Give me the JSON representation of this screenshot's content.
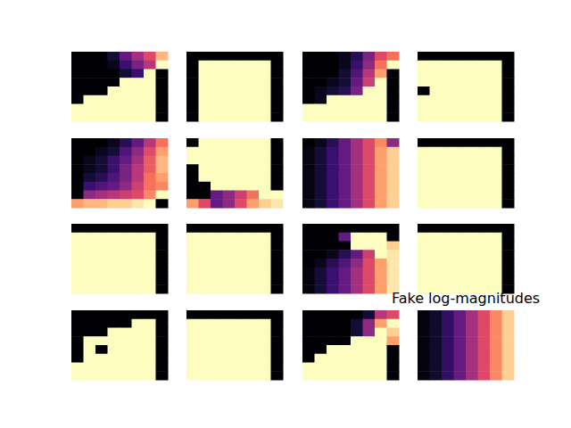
{
  "chart_data": [
    {
      "type": "heatmap",
      "tick_labels": false,
      "color_range": [
        0,
        1
      ],
      "cells": [
        [
          0,
          0,
          0,
          0.1,
          0.3,
          0.45,
          0.6,
          0.85
        ],
        [
          0,
          0,
          0,
          0.05,
          0.2,
          0.35,
          0.5,
          1
        ],
        [
          0,
          0,
          0,
          0,
          0.1,
          0.2,
          1,
          0
        ],
        [
          0,
          0,
          0,
          0,
          1,
          1,
          1,
          0
        ],
        [
          0,
          0,
          0,
          1,
          1,
          1,
          1,
          0
        ],
        [
          0,
          1,
          1,
          1,
          1,
          1,
          1,
          0
        ],
        [
          1,
          1,
          1,
          1,
          1,
          1,
          1,
          0
        ],
        [
          1,
          1,
          1,
          1,
          1,
          1,
          1,
          0
        ]
      ]
    },
    {
      "type": "heatmap",
      "tick_labels": false,
      "color_range": [
        0,
        1
      ],
      "cells": [
        [
          0,
          0,
          0,
          0,
          0,
          0,
          0,
          0
        ],
        [
          0,
          1,
          1,
          1,
          1,
          1,
          1,
          0
        ],
        [
          0,
          1,
          1,
          1,
          1,
          1,
          1,
          0
        ],
        [
          0,
          1,
          1,
          1,
          1,
          1,
          1,
          0
        ],
        [
          0,
          1,
          1,
          1,
          1,
          1,
          1,
          0
        ],
        [
          0,
          1,
          1,
          1,
          1,
          1,
          1,
          0
        ],
        [
          0,
          1,
          1,
          1,
          1,
          1,
          1,
          0
        ],
        [
          0,
          1,
          1,
          1,
          1,
          1,
          1,
          0
        ]
      ]
    },
    {
      "type": "heatmap",
      "tick_labels": false,
      "color_range": [
        0,
        1
      ],
      "cells": [
        [
          0,
          0,
          0,
          0.05,
          0.15,
          0.35,
          0.6,
          0.7
        ],
        [
          0,
          0,
          0,
          0.05,
          0.2,
          0.4,
          0.7,
          1
        ],
        [
          0,
          0,
          0,
          0.1,
          0.25,
          0.5,
          0.8,
          0
        ],
        [
          0,
          0,
          0.05,
          0.1,
          0.3,
          0.55,
          1,
          0
        ],
        [
          0,
          0.05,
          0.1,
          0.15,
          0.35,
          1,
          1,
          0
        ],
        [
          0,
          0.05,
          1,
          1,
          1,
          1,
          1,
          0
        ],
        [
          1,
          1,
          1,
          1,
          1,
          1,
          1,
          0
        ],
        [
          1,
          1,
          1,
          1,
          1,
          1,
          1,
          0
        ]
      ]
    },
    {
      "type": "heatmap",
      "tick_labels": false,
      "color_range": [
        0,
        1
      ],
      "cells": [
        [
          0,
          0,
          0,
          0,
          0,
          0,
          0,
          0
        ],
        [
          1,
          1,
          1,
          1,
          1,
          1,
          1,
          0
        ],
        [
          1,
          1,
          1,
          1,
          1,
          1,
          1,
          0
        ],
        [
          1,
          1,
          1,
          1,
          1,
          1,
          1,
          0
        ],
        [
          0,
          1,
          1,
          1,
          1,
          1,
          1,
          0
        ],
        [
          1,
          1,
          1,
          1,
          1,
          1,
          1,
          0
        ],
        [
          1,
          1,
          1,
          1,
          1,
          1,
          1,
          0
        ],
        [
          1,
          1,
          1,
          1,
          1,
          1,
          1,
          0
        ]
      ]
    },
    {
      "type": "heatmap",
      "tick_labels": false,
      "color_range": [
        0,
        1
      ],
      "cells": [
        [
          0,
          0,
          0,
          0.05,
          0.15,
          0.3,
          0.5,
          0.7
        ],
        [
          0,
          0,
          0.05,
          0.1,
          0.25,
          0.4,
          0.6,
          0.8
        ],
        [
          0,
          0.05,
          0.1,
          0.2,
          0.3,
          0.45,
          0.65,
          0.85
        ],
        [
          0,
          0.05,
          0.1,
          0.2,
          0.35,
          0.5,
          0.65,
          0.85
        ],
        [
          0,
          0.1,
          0.15,
          0.25,
          0.35,
          0.5,
          0.7,
          0.8
        ],
        [
          0,
          0.2,
          0.25,
          0.3,
          0.4,
          0.55,
          0.7,
          0.75
        ],
        [
          0,
          0.4,
          0.45,
          0.5,
          0.55,
          0.6,
          0.75,
          1
        ],
        [
          0.8,
          0.85,
          0.85,
          0.9,
          0.9,
          0.95,
          1,
          0
        ]
      ]
    },
    {
      "type": "heatmap",
      "tick_labels": false,
      "color_range": [
        0,
        1
      ],
      "cells": [
        [
          0,
          1,
          1,
          1,
          1,
          1,
          1,
          0
        ],
        [
          1,
          1,
          1,
          1,
          1,
          1,
          1,
          0
        ],
        [
          1,
          1,
          1,
          1,
          1,
          1,
          1,
          0
        ],
        [
          0,
          1,
          1,
          1,
          1,
          1,
          1,
          0
        ],
        [
          0,
          1,
          1,
          1,
          1,
          1,
          1,
          0
        ],
        [
          0,
          0,
          1,
          1,
          1,
          1,
          1,
          0
        ],
        [
          0,
          0,
          0.3,
          0.4,
          0.55,
          0.7,
          1,
          1
        ],
        [
          0.8,
          0.6,
          0.3,
          0.4,
          0.6,
          0.8,
          0.9,
          0.95
        ]
      ]
    },
    {
      "type": "heatmap",
      "tick_labels": false,
      "color_range": [
        0,
        1
      ],
      "cells": [
        [
          0,
          0.05,
          0.15,
          0.3,
          0.45,
          0.6,
          0.75,
          0.4
        ],
        [
          0.03,
          0.1,
          0.2,
          0.3,
          0.45,
          0.6,
          0.8,
          0.9
        ],
        [
          0.03,
          0.1,
          0.2,
          0.3,
          0.45,
          0.6,
          0.8,
          0.9
        ],
        [
          0.03,
          0.1,
          0.2,
          0.3,
          0.45,
          0.6,
          0.8,
          0.9
        ],
        [
          0.03,
          0.1,
          0.2,
          0.3,
          0.45,
          0.6,
          0.8,
          0.9
        ],
        [
          0.03,
          0.1,
          0.2,
          0.3,
          0.45,
          0.6,
          0.8,
          0.9
        ],
        [
          0.03,
          0.1,
          0.2,
          0.3,
          0.45,
          0.6,
          0.8,
          0.9
        ],
        [
          0.03,
          0.1,
          0.2,
          0.3,
          0.45,
          0.6,
          0.8,
          0.9
        ]
      ]
    },
    {
      "type": "heatmap",
      "tick_labels": false,
      "color_range": [
        0,
        1
      ],
      "cells": [
        [
          0,
          0,
          0,
          0,
          0,
          0,
          0,
          0
        ],
        [
          1,
          1,
          1,
          1,
          1,
          1,
          1,
          0
        ],
        [
          1,
          1,
          1,
          1,
          1,
          1,
          1,
          0
        ],
        [
          1,
          1,
          1,
          1,
          1,
          1,
          1,
          0
        ],
        [
          1,
          1,
          1,
          1,
          1,
          1,
          1,
          0
        ],
        [
          1,
          1,
          1,
          1,
          1,
          1,
          1,
          0
        ],
        [
          1,
          1,
          1,
          1,
          1,
          1,
          1,
          0
        ],
        [
          1,
          1,
          1,
          1,
          1,
          1,
          1,
          0
        ]
      ]
    },
    {
      "type": "heatmap",
      "tick_labels": false,
      "color_range": [
        0,
        1
      ],
      "cells": [
        [
          0,
          0,
          0,
          0,
          0,
          0,
          0,
          0
        ],
        [
          1,
          1,
          1,
          1,
          1,
          1,
          1,
          0
        ],
        [
          1,
          1,
          1,
          1,
          1,
          1,
          1,
          0
        ],
        [
          1,
          1,
          1,
          1,
          1,
          1,
          1,
          0
        ],
        [
          1,
          1,
          1,
          1,
          1,
          1,
          1,
          0
        ],
        [
          1,
          1,
          1,
          1,
          1,
          1,
          1,
          0
        ],
        [
          1,
          1,
          1,
          1,
          1,
          1,
          1,
          0
        ],
        [
          1,
          1,
          1,
          1,
          1,
          1,
          1,
          0
        ]
      ]
    },
    {
      "type": "heatmap",
      "tick_labels": false,
      "color_range": [
        0,
        1
      ],
      "cells": [
        [
          0,
          0,
          0,
          0,
          0,
          0,
          0,
          0
        ],
        [
          1,
          1,
          1,
          1,
          1,
          1,
          1,
          0
        ],
        [
          1,
          1,
          1,
          1,
          1,
          1,
          1,
          0
        ],
        [
          1,
          1,
          1,
          1,
          1,
          1,
          1,
          0
        ],
        [
          1,
          1,
          1,
          1,
          1,
          1,
          1,
          0
        ],
        [
          1,
          1,
          1,
          1,
          1,
          1,
          1,
          0
        ],
        [
          1,
          1,
          1,
          1,
          1,
          1,
          1,
          0
        ],
        [
          1,
          1,
          1,
          1,
          1,
          1,
          1,
          0
        ]
      ]
    },
    {
      "type": "heatmap",
      "tick_labels": false,
      "color_range": [
        0,
        1
      ],
      "cells": [
        [
          0,
          0,
          0,
          0,
          0,
          0,
          0,
          0
        ],
        [
          0,
          0,
          0,
          0.3,
          1,
          1,
          1,
          0
        ],
        [
          0,
          0,
          0,
          0,
          1,
          1,
          1,
          0.9
        ],
        [
          0,
          0,
          0.05,
          0.15,
          0.3,
          0.55,
          1,
          0.95
        ],
        [
          0,
          0.05,
          0.15,
          0.25,
          0.4,
          0.6,
          0.8,
          0.95
        ],
        [
          0.02,
          0.1,
          0.2,
          0.3,
          0.45,
          0.6,
          0.8,
          0.95
        ],
        [
          0.02,
          0.1,
          0.2,
          0.3,
          0.45,
          0.6,
          0.8,
          0.95
        ],
        [
          0.02,
          0.1,
          0.2,
          0.3,
          0.45,
          0.6,
          0.8,
          0.95
        ]
      ]
    },
    {
      "type": "heatmap",
      "tick_labels": false,
      "color_range": [
        0,
        1
      ],
      "cells": [
        [
          0,
          0,
          0,
          0,
          0,
          0,
          0,
          0
        ],
        [
          1,
          1,
          1,
          1,
          1,
          1,
          1,
          0
        ],
        [
          1,
          1,
          1,
          1,
          1,
          1,
          1,
          0
        ],
        [
          1,
          1,
          1,
          1,
          1,
          1,
          1,
          0
        ],
        [
          1,
          1,
          1,
          1,
          1,
          1,
          1,
          0
        ],
        [
          1,
          1,
          1,
          1,
          1,
          1,
          1,
          0
        ],
        [
          1,
          1,
          1,
          1,
          1,
          1,
          1,
          0
        ],
        [
          1,
          1,
          1,
          1,
          1,
          1,
          1,
          0
        ]
      ]
    },
    {
      "type": "heatmap",
      "tick_labels": false,
      "color_range": [
        0,
        1
      ],
      "cells": [
        [
          0,
          0,
          0,
          0,
          0,
          0,
          0,
          0
        ],
        [
          0,
          0,
          0,
          0,
          0,
          1,
          1,
          0
        ],
        [
          0,
          0,
          0,
          1,
          1,
          1,
          1,
          0
        ],
        [
          0,
          1,
          1,
          1,
          1,
          1,
          1,
          0
        ],
        [
          0,
          1,
          0,
          1,
          1,
          1,
          1,
          0
        ],
        [
          0,
          1,
          1,
          1,
          1,
          1,
          1,
          0
        ],
        [
          1,
          1,
          1,
          1,
          1,
          1,
          1,
          0
        ],
        [
          1,
          1,
          1,
          1,
          1,
          1,
          1,
          0
        ]
      ]
    },
    {
      "type": "heatmap",
      "tick_labels": false,
      "color_range": [
        0,
        1
      ],
      "cells": [
        [
          0,
          0,
          0,
          0,
          0,
          0,
          0,
          0
        ],
        [
          1,
          1,
          1,
          1,
          1,
          1,
          1,
          0
        ],
        [
          1,
          1,
          1,
          1,
          1,
          1,
          1,
          0
        ],
        [
          1,
          1,
          1,
          1,
          1,
          1,
          1,
          0
        ],
        [
          1,
          1,
          1,
          1,
          1,
          1,
          1,
          0
        ],
        [
          1,
          1,
          1,
          1,
          1,
          1,
          1,
          0
        ],
        [
          1,
          1,
          1,
          1,
          1,
          1,
          1,
          0
        ],
        [
          1,
          1,
          1,
          1,
          1,
          1,
          1,
          0
        ]
      ]
    },
    {
      "type": "heatmap",
      "tick_labels": false,
      "color_range": [
        0,
        1
      ],
      "cells": [
        [
          0,
          0,
          0,
          0,
          0,
          0.1,
          0.5,
          0.6
        ],
        [
          0,
          0,
          0,
          0,
          0.1,
          0.4,
          0.8,
          1
        ],
        [
          0,
          0,
          0,
          0,
          0.1,
          0.4,
          1,
          0.9
        ],
        [
          0,
          0,
          0,
          0,
          1,
          1,
          1,
          0.8
        ],
        [
          0,
          0,
          1,
          1,
          1,
          1,
          1,
          0
        ],
        [
          0,
          1,
          1,
          1,
          1,
          1,
          1,
          0
        ],
        [
          1,
          1,
          1,
          1,
          1,
          1,
          1,
          0
        ],
        [
          1,
          1,
          1,
          1,
          1,
          1,
          1,
          0
        ]
      ]
    },
    {
      "type": "heatmap",
      "title": "Fake log-magnitudes",
      "tick_labels": false,
      "color_range": [
        0,
        1
      ],
      "cells": [
        [
          0.02,
          0.08,
          0.18,
          0.3,
          0.45,
          0.6,
          0.75,
          0.9
        ],
        [
          0.02,
          0.08,
          0.18,
          0.3,
          0.45,
          0.6,
          0.75,
          0.9
        ],
        [
          0.02,
          0.08,
          0.18,
          0.3,
          0.45,
          0.6,
          0.75,
          0.9
        ],
        [
          0.02,
          0.08,
          0.18,
          0.3,
          0.45,
          0.6,
          0.75,
          0.9
        ],
        [
          0.02,
          0.08,
          0.18,
          0.3,
          0.45,
          0.6,
          0.75,
          0.9
        ],
        [
          0.02,
          0.08,
          0.18,
          0.3,
          0.45,
          0.6,
          0.75,
          0.9
        ],
        [
          0.02,
          0.08,
          0.18,
          0.3,
          0.45,
          0.6,
          0.75,
          0.9
        ],
        [
          0.02,
          0.08,
          0.18,
          0.3,
          0.45,
          0.6,
          0.75,
          0.9
        ]
      ]
    }
  ]
}
